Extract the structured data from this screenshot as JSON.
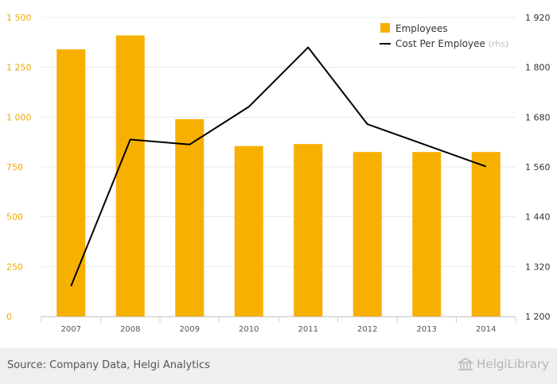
{
  "chart_data": {
    "type": "bar",
    "categories": [
      "2007",
      "2008",
      "2009",
      "2010",
      "2011",
      "2012",
      "2013",
      "2014"
    ],
    "series": [
      {
        "name": "Employees",
        "type": "bar",
        "axis": "left",
        "values": [
          1340,
          1410,
          990,
          855,
          865,
          825,
          825,
          825
        ]
      },
      {
        "name": "Cost Per Employee",
        "name_suffix": "(rhs)",
        "type": "line",
        "axis": "right",
        "values": [
          1273,
          1626,
          1614,
          1705,
          1848,
          1663,
          1612,
          1561
        ]
      }
    ],
    "y_left": {
      "min": 0,
      "max": 1500,
      "ticks": [
        "0",
        "250",
        "500",
        "750",
        "1 000",
        "1 250",
        "1 500"
      ]
    },
    "y_right": {
      "min": 1200,
      "max": 1920,
      "ticks": [
        "1 200",
        "1 320",
        "1 440",
        "1 560",
        "1 680",
        "1 800",
        "1 920"
      ]
    },
    "grid": true,
    "legend_position": "top-right",
    "colors": {
      "bar": "#f7b000",
      "line": "#000000",
      "left_axis_text": "#f0a800",
      "right_axis_text": "#333333",
      "grid": "#e8e8e8"
    }
  },
  "footer": {
    "source": "Source: Company Data, Helgi Analytics",
    "brand": "HelgiLibrary",
    "brand_icon": "library-building-icon"
  }
}
